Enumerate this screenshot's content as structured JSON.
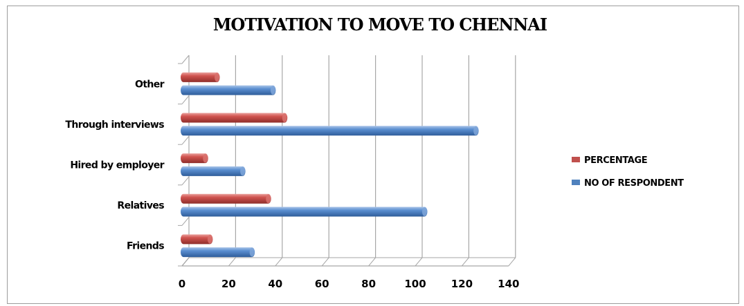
{
  "colors": {
    "percentage": "#c0504d",
    "respondents": "#4f81bd",
    "grid": "#a6a6a6"
  },
  "chart_data": {
    "type": "bar",
    "orientation": "horizontal",
    "title": "MOTIVATION TO MOVE TO CHENNAI",
    "categories": [
      "Friends",
      "Relatives",
      "Hired by employer",
      "Through interviews",
      "Other"
    ],
    "series": [
      {
        "name": "NO OF RESPONDENT",
        "values": [
          30,
          104,
          26,
          126,
          39
        ]
      },
      {
        "name": "PERCENTAGE",
        "values": [
          12,
          37,
          10,
          44,
          15
        ]
      }
    ],
    "x_ticks": [
      "0",
      "20",
      "40",
      "60",
      "80",
      "100",
      "120",
      "140"
    ],
    "xlim": [
      0,
      140
    ],
    "grid": true,
    "legend_position": "right",
    "style": "3d-cylinder"
  }
}
